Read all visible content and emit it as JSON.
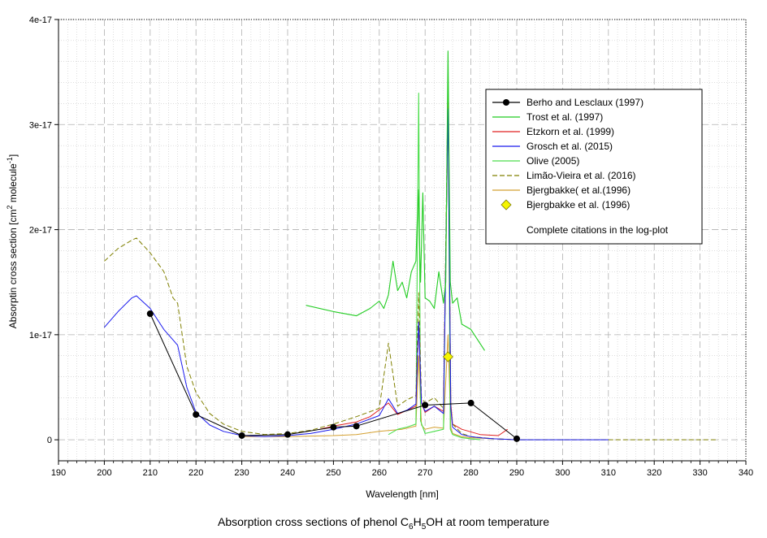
{
  "chart_data": {
    "type": "line",
    "title": "Absorption cross sections of phenol C6H5OH at room temperature",
    "caption_parts": {
      "pre": "Absorption cross sections of phenol C",
      "s1": "6",
      "mid": "H",
      "s2": "5",
      "post": "OH at room temperature"
    },
    "xlabel": "Wavelength [nm]",
    "ylabel_parts": {
      "pre": "Absorptin cross section [cm",
      "sup1": "2",
      "mid": "   molecule",
      "sup2": "-1",
      "post": "]"
    },
    "xlim": [
      190,
      340
    ],
    "ylim": [
      -2e-18,
      4e-17
    ],
    "x_ticks": [
      190,
      200,
      210,
      220,
      230,
      240,
      250,
      260,
      270,
      280,
      290,
      300,
      310,
      320,
      330,
      340
    ],
    "y_ticks": [
      0,
      1e-17,
      2e-17,
      3e-17,
      4e-17
    ],
    "y_tick_labels": [
      "0",
      "1e-17",
      "2e-17",
      "3e-17",
      "4e-17"
    ],
    "grid": true,
    "legend_position": "top-right",
    "legend_note": "Complete citations in the log-plot",
    "colors": {
      "berho": "#000000",
      "trost": "#22cc22",
      "etzkorn": "#e02020",
      "grosch": "#1a1aee",
      "olive": "#4cde4c",
      "limao": "#808000",
      "bjerg_line": "#d4a030",
      "bjerg_marker": "#f5f500",
      "grid": "#c8c8c8"
    },
    "series": [
      {
        "name": "Berho and Lesclaux (1997)",
        "key": "berho",
        "style": "line-marker",
        "x": [
          210,
          220,
          230,
          240,
          250,
          255,
          270,
          280,
          290
        ],
        "y": [
          1.2e-17,
          2.4e-18,
          4e-19,
          5e-19,
          1.2e-18,
          1.3e-18,
          3.3e-18,
          3.5e-18,
          1e-19
        ]
      },
      {
        "name": "Trost et al. (1997)",
        "key": "trost",
        "style": "line",
        "x": [
          244,
          250,
          255,
          258,
          260,
          261,
          262,
          263,
          264,
          265,
          266,
          267,
          268,
          268.5,
          269,
          269.5,
          270,
          271,
          272,
          273,
          274,
          274.5,
          275,
          275.5,
          276,
          277,
          278,
          280,
          283
        ],
        "y": [
          1.28e-17,
          1.22e-17,
          1.18e-17,
          1.25e-17,
          1.32e-17,
          1.25e-17,
          1.38e-17,
          1.7e-17,
          1.42e-17,
          1.5e-17,
          1.35e-17,
          1.6e-17,
          1.7e-17,
          2.38e-17,
          1.5e-17,
          2.35e-17,
          1.35e-17,
          1.32e-17,
          1.25e-17,
          1.6e-17,
          1.3e-17,
          1.5e-17,
          3.7e-17,
          1.5e-17,
          1.3e-17,
          1.35e-17,
          1.1e-17,
          1.05e-17,
          8.5e-18
        ]
      },
      {
        "name": "Etzkorn et al. (1999)",
        "key": "etzkorn",
        "style": "line",
        "x": [
          247,
          250,
          255,
          258,
          262,
          264,
          266,
          268,
          268.6,
          269.2,
          270,
          272,
          274,
          275,
          275.6,
          276,
          278,
          282,
          286,
          288
        ],
        "y": [
          1e-18,
          1.3e-18,
          1.7e-18,
          2.2e-18,
          3.5e-18,
          2.4e-18,
          2.8e-18,
          3.2e-18,
          1.1e-17,
          3.5e-18,
          2.6e-18,
          3.2e-18,
          2.7e-18,
          3.2e-17,
          3.5e-18,
          1.5e-18,
          1e-18,
          5e-19,
          4e-19,
          1e-18
        ]
      },
      {
        "name": "Grosch et al. (2015)",
        "key": "grosch",
        "style": "line",
        "x": [
          200,
          203,
          206,
          207,
          210,
          213,
          215,
          216,
          218,
          220,
          223,
          226,
          230,
          235,
          240,
          245,
          250,
          255,
          260,
          262,
          264,
          266,
          268,
          268.6,
          269.2,
          270,
          272,
          274,
          275,
          275.6,
          276,
          278,
          280,
          282,
          285,
          290,
          300,
          310
        ],
        "y": [
          1.07e-17,
          1.22e-17,
          1.35e-17,
          1.37e-17,
          1.25e-17,
          1.05e-17,
          9.5e-18,
          9e-18,
          5e-18,
          2.6e-18,
          1.4e-18,
          8e-19,
          4e-19,
          3e-19,
          4e-19,
          6e-19,
          1e-18,
          1.5e-18,
          2.3e-18,
          3.9e-18,
          2.5e-18,
          2.8e-18,
          3.4e-18,
          1.12e-17,
          3.5e-18,
          2.7e-18,
          3.2e-18,
          2.5e-18,
          3.15e-17,
          3e-18,
          1.2e-18,
          5e-19,
          3e-19,
          2e-19,
          1e-19,
          0,
          0,
          0
        ]
      },
      {
        "name": "Olive (2005)",
        "key": "olive",
        "style": "line",
        "x": [
          262,
          264,
          266,
          268,
          268.6,
          269,
          270,
          272,
          274,
          275,
          275.5,
          276,
          278,
          280,
          282
        ],
        "y": [
          5e-19,
          1e-18,
          1.2e-18,
          1.5e-18,
          3.3e-17,
          1.8e-18,
          6e-19,
          8e-19,
          1e-18,
          3.3e-17,
          1e-18,
          5e-19,
          2e-19,
          1e-19,
          0
        ]
      },
      {
        "name": "Limão-Vieira et al. (2016)",
        "key": "limao",
        "style": "dashed",
        "x": [
          200,
          203,
          206,
          207,
          210,
          213,
          215,
          216,
          218,
          220,
          223,
          226,
          230,
          235,
          240,
          245,
          250,
          255,
          260,
          262,
          264,
          266,
          268,
          268.6,
          269.2,
          270,
          272,
          274,
          275,
          275.6,
          276,
          278,
          280,
          285,
          290,
          300,
          310,
          320,
          330,
          334
        ],
        "y": [
          1.7e-17,
          1.82e-17,
          1.9e-17,
          1.92e-17,
          1.78e-17,
          1.6e-17,
          1.35e-17,
          1.3e-17,
          7e-18,
          4.5e-18,
          2.5e-18,
          1.5e-18,
          8e-19,
          5e-19,
          6e-19,
          9e-19,
          1.5e-18,
          2.2e-18,
          3e-18,
          9.2e-18,
          3.2e-18,
          3.8e-18,
          4.2e-18,
          1.4e-17,
          4e-18,
          3.5e-18,
          4e-18,
          3e-18,
          3.4e-17,
          3e-18,
          1.5e-18,
          6e-19,
          3e-19,
          1e-19,
          0,
          0,
          0,
          0,
          0,
          0
        ]
      },
      {
        "name": "Bjergbakke( et al.(1996)",
        "key": "bjerg_line",
        "style": "line",
        "x": [
          230,
          240,
          250,
          255,
          260,
          265,
          268,
          268.6,
          269.2,
          270,
          272,
          274,
          275,
          275.6,
          276,
          278,
          280,
          285,
          290
        ],
        "y": [
          3e-19,
          3e-19,
          4e-19,
          5e-19,
          8e-19,
          1e-18,
          1.3e-18,
          8e-18,
          1.4e-18,
          1e-18,
          1.2e-18,
          1.1e-18,
          1e-17,
          1.2e-18,
          6e-19,
          3e-19,
          2e-19,
          1e-19,
          0
        ]
      },
      {
        "name": "Bjergbakke et al. (1996)",
        "key": "bjerg_marker",
        "style": "marker",
        "x": [
          275
        ],
        "y": [
          7.9e-18
        ]
      }
    ]
  }
}
